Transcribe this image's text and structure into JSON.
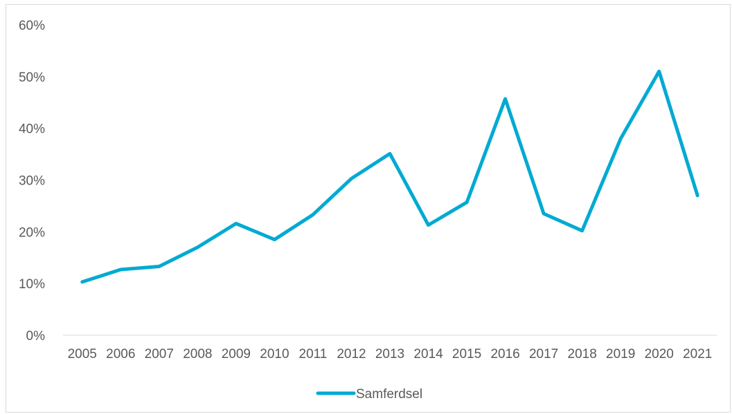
{
  "chart_data": {
    "type": "line",
    "title": "",
    "xlabel": "",
    "ylabel": "",
    "categories": [
      "2005",
      "2006",
      "2007",
      "2008",
      "2009",
      "2010",
      "2011",
      "2012",
      "2013",
      "2014",
      "2015",
      "2016",
      "2017",
      "2018",
      "2019",
      "2020",
      "2021"
    ],
    "series": [
      {
        "name": "Samferdsel",
        "values": [
          0.103,
          0.127,
          0.133,
          0.17,
          0.216,
          0.185,
          0.233,
          0.303,
          0.351,
          0.213,
          0.257,
          0.457,
          0.235,
          0.202,
          0.38,
          0.51,
          0.27
        ],
        "color": "#00aad2"
      }
    ],
    "ylim": [
      0,
      0.6
    ],
    "yticks": [
      0,
      0.1,
      0.2,
      0.3,
      0.4,
      0.5,
      0.6
    ],
    "ytick_labels": [
      "0%",
      "10%",
      "20%",
      "30%",
      "40%",
      "50%",
      "60%"
    ],
    "grid": false,
    "legend_position": "bottom",
    "axis_line_color": "#d9d9d9",
    "label_color": "#595959"
  }
}
